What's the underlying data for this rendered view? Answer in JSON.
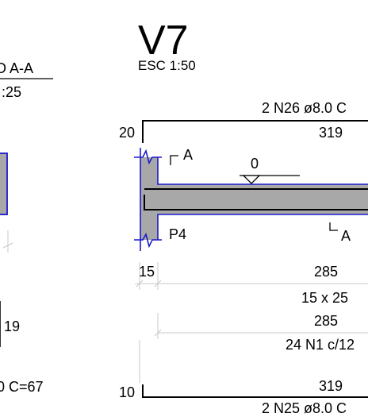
{
  "beam": {
    "title": "V7",
    "scale": "ESC 1:50"
  },
  "section": {
    "title_partial": "O A-A",
    "scale_partial": ":25",
    "height_dim": "19",
    "stirrup_partial": "0  C=67"
  },
  "top_bar": {
    "hook_length": "20",
    "label": "2 N26 ø8.0  C",
    "length": "319"
  },
  "bottom_bar": {
    "hook_length": "10",
    "label": "2 N25 ø8.0  C",
    "length": "319"
  },
  "elevation": {
    "cut_marker_top": "A",
    "cut_marker_bottom": "A",
    "level_label": "0",
    "support_label": "P4"
  },
  "dimensions": {
    "support_width": "15",
    "span": "285",
    "beam_section": "15 x 25",
    "stirrup_span": "285",
    "stirrups": "24 N1 c/12"
  },
  "colors": {
    "concrete": "#a8a8a8",
    "outline": "#1a1acc",
    "line": "#000000",
    "ext_line": "#c8c8c8"
  }
}
